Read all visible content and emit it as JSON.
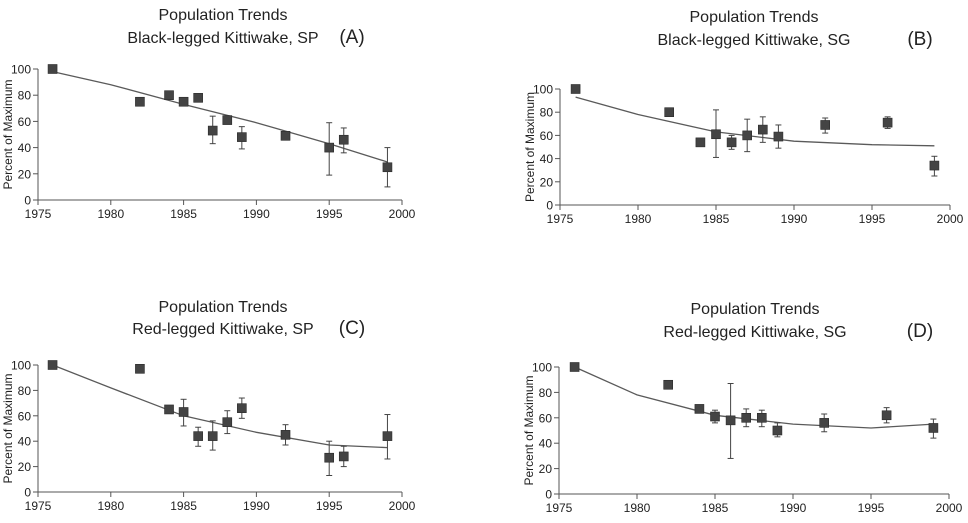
{
  "chart_data": [
    {
      "type": "scatter",
      "label": "(A)",
      "title": "Population Trends",
      "subtitle": "Black-legged Kittiwake, SP",
      "ylabel": "Percent of Maximum",
      "xlim": [
        1975,
        2000
      ],
      "ylim": [
        0,
        100
      ],
      "xticks": [
        1975,
        1980,
        1985,
        1990,
        1995,
        2000
      ],
      "yticks": [
        0,
        20,
        40,
        60,
        80,
        100
      ],
      "points": [
        {
          "x": 1976,
          "y": 100
        },
        {
          "x": 1982,
          "y": 75
        },
        {
          "x": 1984,
          "y": 80
        },
        {
          "x": 1985,
          "y": 75
        },
        {
          "x": 1986,
          "y": 78
        },
        {
          "x": 1987,
          "y": 53,
          "lo": 43,
          "hi": 64
        },
        {
          "x": 1988,
          "y": 61
        },
        {
          "x": 1989,
          "y": 48,
          "lo": 39,
          "hi": 56
        },
        {
          "x": 1992,
          "y": 49
        },
        {
          "x": 1995,
          "y": 40,
          "lo": 19,
          "hi": 59
        },
        {
          "x": 1996,
          "y": 46,
          "lo": 36,
          "hi": 55
        },
        {
          "x": 1999,
          "y": 25,
          "lo": 10,
          "hi": 40
        }
      ],
      "trend": [
        [
          1976,
          98
        ],
        [
          1980,
          88
        ],
        [
          1985,
          73
        ],
        [
          1990,
          59
        ],
        [
          1995,
          43
        ],
        [
          1999,
          29
        ]
      ]
    },
    {
      "type": "scatter",
      "label": "(B)",
      "title": "Population Trends",
      "subtitle": "Black-legged Kittiwake, SG",
      "ylabel": "Percent of Maximum",
      "xlim": [
        1975,
        2000
      ],
      "ylim": [
        0,
        100
      ],
      "xticks": [
        1975,
        1980,
        1985,
        1990,
        1995,
        2000
      ],
      "yticks": [
        0,
        20,
        40,
        60,
        80,
        100
      ],
      "points": [
        {
          "x": 1976,
          "y": 100
        },
        {
          "x": 1982,
          "y": 80
        },
        {
          "x": 1984,
          "y": 54
        },
        {
          "x": 1985,
          "y": 61,
          "lo": 41,
          "hi": 82
        },
        {
          "x": 1986,
          "y": 54,
          "lo": 48,
          "hi": 60
        },
        {
          "x": 1987,
          "y": 60,
          "lo": 46,
          "hi": 74
        },
        {
          "x": 1988,
          "y": 65,
          "lo": 54,
          "hi": 76
        },
        {
          "x": 1989,
          "y": 59,
          "lo": 49,
          "hi": 69
        },
        {
          "x": 1992,
          "y": 69,
          "lo": 62,
          "hi": 75
        },
        {
          "x": 1996,
          "y": 71,
          "lo": 66,
          "hi": 76
        },
        {
          "x": 1999,
          "y": 34,
          "lo": 25,
          "hi": 42
        }
      ],
      "trend": [
        [
          1976,
          93
        ],
        [
          1980,
          78
        ],
        [
          1985,
          63
        ],
        [
          1990,
          55
        ],
        [
          1995,
          52
        ],
        [
          1999,
          51
        ]
      ]
    },
    {
      "type": "scatter",
      "label": "(C)",
      "title": "Population Trends",
      "subtitle": "Red-legged Kittiwake, SP",
      "ylabel": "Percent of Maximum",
      "xlim": [
        1975,
        2000
      ],
      "ylim": [
        0,
        100
      ],
      "xticks": [
        1975,
        1980,
        1985,
        1990,
        1995,
        2000
      ],
      "yticks": [
        0,
        20,
        40,
        60,
        80,
        100
      ],
      "points": [
        {
          "x": 1976,
          "y": 100
        },
        {
          "x": 1982,
          "y": 97
        },
        {
          "x": 1984,
          "y": 65
        },
        {
          "x": 1985,
          "y": 63,
          "lo": 52,
          "hi": 73
        },
        {
          "x": 1986,
          "y": 44,
          "lo": 36,
          "hi": 51
        },
        {
          "x": 1987,
          "y": 44,
          "lo": 33,
          "hi": 56
        },
        {
          "x": 1988,
          "y": 55,
          "lo": 46,
          "hi": 64
        },
        {
          "x": 1989,
          "y": 66,
          "lo": 58,
          "hi": 74
        },
        {
          "x": 1992,
          "y": 45,
          "lo": 37,
          "hi": 53
        },
        {
          "x": 1995,
          "y": 27,
          "lo": 13,
          "hi": 40
        },
        {
          "x": 1996,
          "y": 28,
          "lo": 20,
          "hi": 36
        },
        {
          "x": 1999,
          "y": 44,
          "lo": 26,
          "hi": 61
        }
      ],
      "trend": [
        [
          1976,
          100
        ],
        [
          1980,
          82
        ],
        [
          1985,
          60
        ],
        [
          1990,
          47
        ],
        [
          1995,
          37
        ],
        [
          1999,
          35
        ]
      ]
    },
    {
      "type": "scatter",
      "label": "(D)",
      "title": "Population Trends",
      "subtitle": "Red-legged Kittiwake, SG",
      "ylabel": "Percent of Maximum",
      "xlim": [
        1975,
        2000
      ],
      "ylim": [
        0,
        100
      ],
      "xticks": [
        1975,
        1980,
        1985,
        1990,
        1995,
        2000
      ],
      "yticks": [
        0,
        20,
        40,
        60,
        80,
        100
      ],
      "points": [
        {
          "x": 1976,
          "y": 100
        },
        {
          "x": 1982,
          "y": 86
        },
        {
          "x": 1984,
          "y": 67
        },
        {
          "x": 1985,
          "y": 61,
          "lo": 56,
          "hi": 66
        },
        {
          "x": 1986,
          "y": 58,
          "lo": 28,
          "hi": 87
        },
        {
          "x": 1987,
          "y": 60,
          "lo": 53,
          "hi": 67
        },
        {
          "x": 1988,
          "y": 60,
          "lo": 53,
          "hi": 66
        },
        {
          "x": 1989,
          "y": 50,
          "lo": 45,
          "hi": 56
        },
        {
          "x": 1992,
          "y": 56,
          "lo": 49,
          "hi": 63
        },
        {
          "x": 1996,
          "y": 62,
          "lo": 56,
          "hi": 68
        },
        {
          "x": 1999,
          "y": 52,
          "lo": 44,
          "hi": 59
        }
      ],
      "trend": [
        [
          1976,
          100
        ],
        [
          1980,
          78
        ],
        [
          1985,
          62
        ],
        [
          1990,
          55
        ],
        [
          1995,
          52
        ],
        [
          1999,
          55
        ]
      ]
    }
  ]
}
